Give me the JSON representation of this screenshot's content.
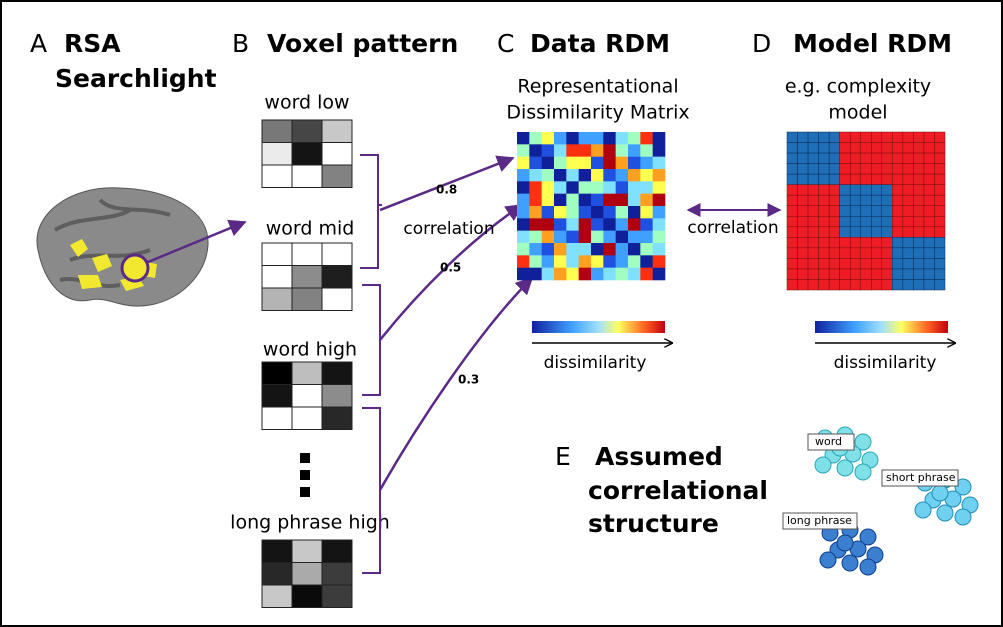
{
  "panels": {
    "A": {
      "letter": "A",
      "title_lines": [
        "RSA",
        "Searchlight"
      ]
    },
    "B": {
      "letter": "B",
      "title": "Voxel pattern",
      "patterns": [
        "word low",
        "word mid",
        "word high",
        "long phrase high"
      ]
    },
    "C": {
      "letter": "C",
      "title": "Data RDM",
      "subtitle_lines": [
        "Representational",
        "Dissimilarity Matrix"
      ],
      "colorbar_label": "dissimilarity"
    },
    "D": {
      "letter": "D",
      "title": "Model RDM",
      "subtitle_lines": [
        "e.g. complexity",
        "model"
      ],
      "colorbar_label": "dissimilarity"
    },
    "E": {
      "letter": "E",
      "title_lines": [
        "Assumed",
        "correlational",
        "structure"
      ],
      "clusters": [
        "word",
        "short phrase",
        "long phrase"
      ]
    }
  },
  "edges": {
    "pattern_to_rdm_label": "correlation",
    "weights": [
      0.8,
      0.5,
      0.3
    ],
    "rdm_to_model_label": "correlation"
  }
}
